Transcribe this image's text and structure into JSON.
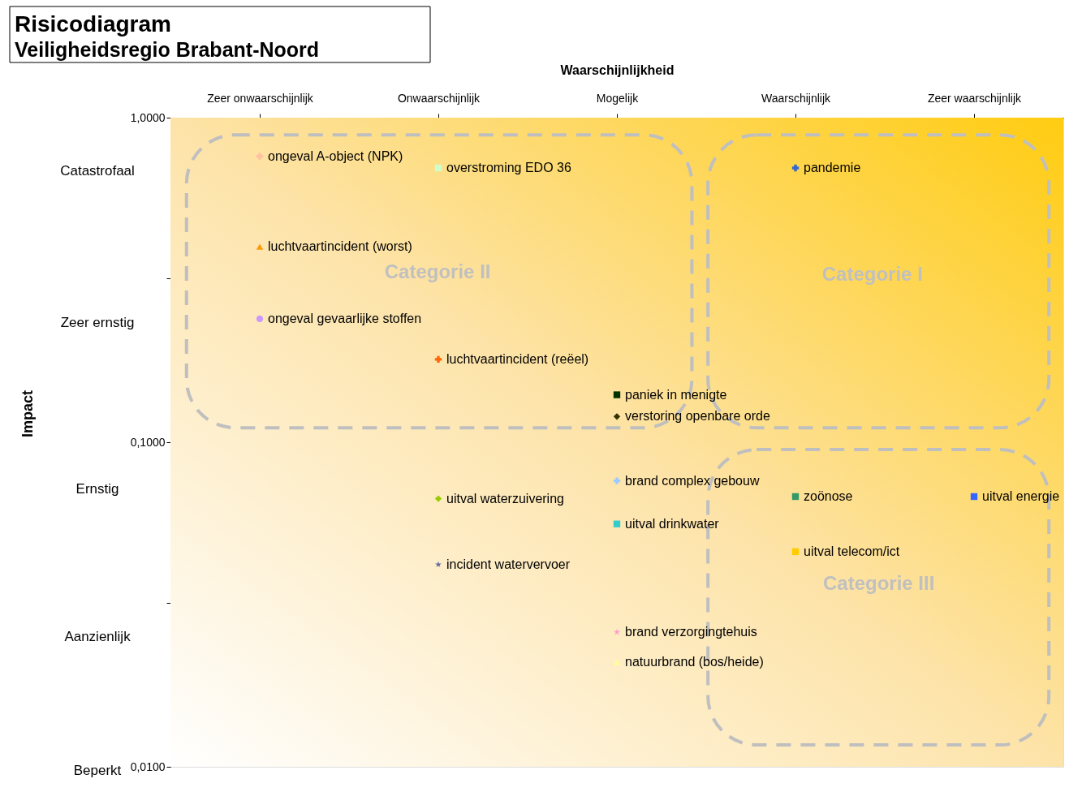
{
  "chart_data": {
    "type": "scatter",
    "title": "Risicodiagram",
    "subtitle": "Veiligheidsregio Brabant-Noord",
    "xlabel": "Waarschijnlijkheid",
    "categories": [
      "Zeer onwaarschijnlijk",
      "Onwaarschijnlijk",
      "Mogelijk",
      "Waarschijnlijk",
      "Zeer waarschijnlijk"
    ],
    "log": "y",
    "ylim": [
      0.01,
      1
    ],
    "yticks": [
      {
        "value": 1,
        "label": "1,0000"
      },
      {
        "value": 0.32,
        "label": null
      },
      {
        "value": 0.1,
        "label": "0,1000"
      },
      {
        "value": 0.032,
        "label": null
      },
      {
        "value": 0.01,
        "label": "0,0100"
      }
    ],
    "legend": false,
    "data_labels": false,
    "annotations": [
      "Categorie II",
      "Categorie I",
      "Categorie III",
      "Catastrofaal",
      "Zeer ernstig",
      "Ernstig",
      "Aanzienlijk",
      "Beperkt",
      "Impact"
    ],
    "series": [
      {
        "name": "ongeval A-object (NPK)",
        "color": "#ffc0a0",
        "marker": "cross",
        "values": [
          0.76,
          null,
          null,
          null,
          null
        ]
      },
      {
        "name": "overstroming EDO 36",
        "color": "#ccffcc",
        "marker": "square",
        "values": [
          null,
          0.7,
          null,
          null,
          null
        ]
      },
      {
        "name": "pandemie",
        "color": "#3366cc",
        "marker": "cross",
        "values": [
          null,
          null,
          null,
          0.7,
          null
        ]
      },
      {
        "name": "luchtvaartincident (worst)",
        "color": "#ff9900",
        "marker": "triangle",
        "values": [
          0.4,
          null,
          null,
          null,
          null
        ]
      },
      {
        "name": "ongeval gevaarlijke stoffen",
        "color": "#cc99ff",
        "marker": "circle",
        "values": [
          0.24,
          null,
          null,
          null,
          null
        ]
      },
      {
        "name": "luchtvaartincident (reëel)",
        "color": "#ff6600",
        "marker": "cross",
        "values": [
          null,
          0.18,
          null,
          null,
          null
        ]
      },
      {
        "name": "paniek in menigte",
        "color": "#003300",
        "marker": "square",
        "values": [
          null,
          null,
          0.14,
          null,
          null
        ]
      },
      {
        "name": "verstoring openbare orde",
        "color": "#333300",
        "marker": "diamond",
        "values": [
          null,
          null,
          0.12,
          null,
          null
        ]
      },
      {
        "name": "brand complex gebouw",
        "color": "#99ccff",
        "marker": "cross",
        "values": [
          null,
          null,
          0.076,
          null,
          null
        ]
      },
      {
        "name": "zoönose",
        "color": "#339966",
        "marker": "square",
        "values": [
          null,
          null,
          null,
          0.068,
          null
        ]
      },
      {
        "name": "uitval energie",
        "color": "#3366ff",
        "marker": "square",
        "values": [
          null,
          null,
          null,
          null,
          0.068
        ]
      },
      {
        "name": "uitval waterzuivering",
        "color": "#99cc00",
        "marker": "diamond",
        "values": [
          null,
          0.067,
          null,
          null,
          null
        ]
      },
      {
        "name": "uitval drinkwater",
        "color": "#33cccc",
        "marker": "square",
        "values": [
          null,
          null,
          0.056,
          null,
          null
        ]
      },
      {
        "name": "uitval telecom/ict",
        "color": "#ffcc00",
        "marker": "square",
        "values": [
          null,
          null,
          null,
          0.046,
          null
        ]
      },
      {
        "name": "incident watervervoer",
        "color": "#666699",
        "marker": "star",
        "values": [
          null,
          0.042,
          null,
          null,
          null
        ]
      },
      {
        "name": "brand verzorgingtehuis",
        "color": "#ff99cc",
        "marker": "star",
        "values": [
          null,
          null,
          0.026,
          null,
          null
        ]
      },
      {
        "name": "natuurbrand (bos/heide)",
        "color": "#ffff99",
        "marker": "triangle",
        "values": [
          null,
          null,
          0.021,
          null,
          null
        ]
      }
    ]
  }
}
